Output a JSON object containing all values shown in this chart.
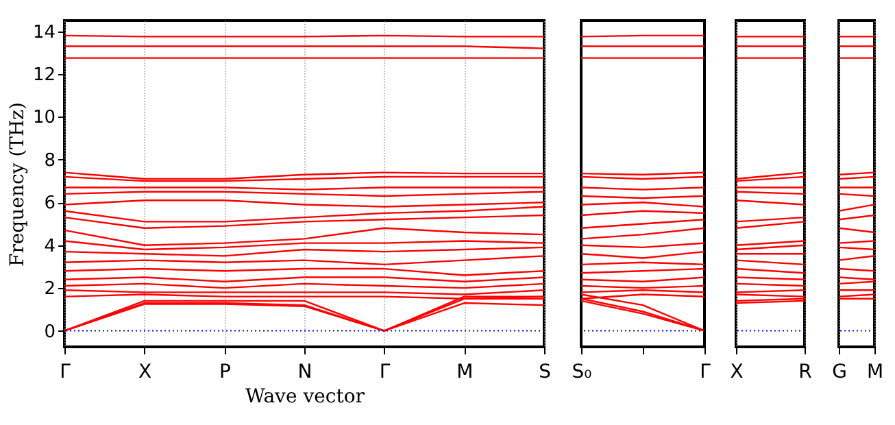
{
  "chart_data": [
    {
      "type": "line",
      "xlabel": "Wave vector",
      "ylabel": "Frequency (THz)",
      "grid": "x",
      "line_style": "solid",
      "marker": "none",
      "categories": [
        "Γ",
        "X",
        "P",
        "N",
        "Γ",
        "M",
        "S"
      ],
      "ylim": [
        -0.75,
        14.5
      ],
      "yticks": [
        0,
        2,
        4,
        6,
        8,
        10,
        12,
        14
      ],
      "ref_lines": [
        {
          "axis": "y",
          "value": 0,
          "color": "#0000ff",
          "line_style": "dotted"
        }
      ],
      "series": [
        {
          "color": "#ff0000",
          "values": [
            13.8,
            13.75,
            13.75,
            13.75,
            13.8,
            13.75,
            13.75
          ]
        },
        {
          "color": "#ff0000",
          "values": [
            13.3,
            13.3,
            13.3,
            13.3,
            13.3,
            13.3,
            13.2
          ]
        },
        {
          "color": "#ff0000",
          "values": [
            12.75,
            12.75,
            12.75,
            12.75,
            12.75,
            12.75,
            12.75
          ]
        },
        {
          "color": "#ff0000",
          "values": [
            7.4,
            7.1,
            7.1,
            7.3,
            7.4,
            7.35,
            7.35
          ]
        },
        {
          "color": "#ff0000",
          "values": [
            7.2,
            7.0,
            7.0,
            7.1,
            7.2,
            7.2,
            7.2
          ]
        },
        {
          "color": "#ff0000",
          "values": [
            6.7,
            6.7,
            6.7,
            6.6,
            6.7,
            6.7,
            6.7
          ]
        },
        {
          "color": "#ff0000",
          "values": [
            6.4,
            6.5,
            6.5,
            6.4,
            6.3,
            6.4,
            6.5
          ]
        },
        {
          "color": "#ff0000",
          "values": [
            5.9,
            6.1,
            6.1,
            5.9,
            5.8,
            5.9,
            6.0
          ]
        },
        {
          "color": "#ff0000",
          "values": [
            5.6,
            5.1,
            5.1,
            5.3,
            5.5,
            5.6,
            5.8
          ]
        },
        {
          "color": "#ff0000",
          "values": [
            5.3,
            4.8,
            4.9,
            5.1,
            5.2,
            5.3,
            5.4
          ]
        },
        {
          "color": "#ff0000",
          "values": [
            4.7,
            4.0,
            4.1,
            4.3,
            4.8,
            4.6,
            4.5
          ]
        },
        {
          "color": "#ff0000",
          "values": [
            4.2,
            3.8,
            3.9,
            4.1,
            4.1,
            4.2,
            4.1
          ]
        },
        {
          "color": "#ff0000",
          "values": [
            3.7,
            3.6,
            3.5,
            3.8,
            3.7,
            3.8,
            3.9
          ]
        },
        {
          "color": "#ff0000",
          "values": [
            3.2,
            3.3,
            3.2,
            3.3,
            3.1,
            3.3,
            3.5
          ]
        },
        {
          "color": "#ff0000",
          "values": [
            2.8,
            2.9,
            2.8,
            2.9,
            2.9,
            2.6,
            2.8
          ]
        },
        {
          "color": "#ff0000",
          "values": [
            2.4,
            2.5,
            2.3,
            2.5,
            2.5,
            2.3,
            2.5
          ]
        },
        {
          "color": "#ff0000",
          "values": [
            2.1,
            2.2,
            2.0,
            2.2,
            2.1,
            2.0,
            2.2
          ]
        },
        {
          "color": "#ff0000",
          "values": [
            1.9,
            1.8,
            1.8,
            1.8,
            1.8,
            1.7,
            1.9
          ]
        },
        {
          "color": "#ff0000",
          "values": [
            1.6,
            1.7,
            1.6,
            1.6,
            1.6,
            1.5,
            1.6
          ]
        },
        {
          "color": "#ff0000",
          "values": [
            0,
            1.4,
            1.4,
            1.4,
            0,
            1.6,
            1.6
          ]
        },
        {
          "color": "#ff0000",
          "values": [
            0,
            1.3,
            1.3,
            1.2,
            0,
            1.5,
            1.5
          ]
        },
        {
          "color": "#ff0000",
          "values": [
            0,
            1.25,
            1.25,
            1.15,
            0,
            1.3,
            1.2
          ]
        }
      ]
    },
    {
      "type": "line",
      "tick_labels": "x",
      "line_style": "solid",
      "marker": "none",
      "categories": [
        "S₀",
        null,
        "Γ"
      ],
      "ylim": [
        -0.75,
        14.5
      ],
      "ref_lines": [
        {
          "axis": "y",
          "value": 0,
          "color": "#0000ff",
          "line_style": "dotted"
        }
      ],
      "series": [
        {
          "color": "#ff0000",
          "values": [
            13.75,
            13.8,
            13.8
          ]
        },
        {
          "color": "#ff0000",
          "values": [
            13.3,
            13.3,
            13.3
          ]
        },
        {
          "color": "#ff0000",
          "values": [
            12.75,
            12.75,
            12.75
          ]
        },
        {
          "color": "#ff0000",
          "values": [
            7.35,
            7.3,
            7.4
          ]
        },
        {
          "color": "#ff0000",
          "values": [
            7.2,
            7.1,
            7.2
          ]
        },
        {
          "color": "#ff0000",
          "values": [
            6.7,
            6.6,
            6.7
          ]
        },
        {
          "color": "#ff0000",
          "values": [
            6.3,
            6.2,
            6.3
          ]
        },
        {
          "color": "#ff0000",
          "values": [
            5.9,
            6.0,
            5.8
          ]
        },
        {
          "color": "#ff0000",
          "values": [
            5.4,
            5.6,
            5.5
          ]
        },
        {
          "color": "#ff0000",
          "values": [
            4.8,
            5.0,
            5.2
          ]
        },
        {
          "color": "#ff0000",
          "values": [
            4.3,
            4.5,
            4.8
          ]
        },
        {
          "color": "#ff0000",
          "values": [
            4.0,
            3.9,
            4.1
          ]
        },
        {
          "color": "#ff0000",
          "values": [
            3.6,
            3.4,
            3.7
          ]
        },
        {
          "color": "#ff0000",
          "values": [
            3.1,
            3.2,
            3.1
          ]
        },
        {
          "color": "#ff0000",
          "values": [
            2.7,
            2.8,
            2.9
          ]
        },
        {
          "color": "#ff0000",
          "values": [
            2.4,
            2.3,
            2.5
          ]
        },
        {
          "color": "#ff0000",
          "values": [
            2.1,
            2.0,
            2.1
          ]
        },
        {
          "color": "#ff0000",
          "values": [
            1.8,
            1.9,
            1.8
          ]
        },
        {
          "color": "#ff0000",
          "values": [
            1.5,
            1.7,
            1.6
          ]
        },
        {
          "color": "#ff0000",
          "values": [
            1.7,
            1.2,
            0
          ]
        },
        {
          "color": "#ff0000",
          "values": [
            1.5,
            0.9,
            0
          ]
        },
        {
          "color": "#ff0000",
          "values": [
            1.4,
            0.8,
            0
          ]
        }
      ]
    },
    {
      "type": "line",
      "tick_labels": "x",
      "grid": "x",
      "line_style": "solid",
      "marker": "none",
      "categories": [
        "X",
        "R"
      ],
      "ylim": [
        -0.75,
        14.5
      ],
      "ref_lines": [
        {
          "axis": "y",
          "value": 0,
          "color": "#0000ff",
          "line_style": "dotted"
        }
      ],
      "series": [
        {
          "color": "#ff0000",
          "values": [
            13.75,
            13.75
          ]
        },
        {
          "color": "#ff0000",
          "values": [
            13.3,
            13.3
          ]
        },
        {
          "color": "#ff0000",
          "values": [
            12.75,
            12.75
          ]
        },
        {
          "color": "#ff0000",
          "values": [
            7.1,
            7.4
          ]
        },
        {
          "color": "#ff0000",
          "values": [
            7.0,
            7.2
          ]
        },
        {
          "color": "#ff0000",
          "values": [
            6.7,
            6.7
          ]
        },
        {
          "color": "#ff0000",
          "values": [
            6.5,
            6.4
          ]
        },
        {
          "color": "#ff0000",
          "values": [
            6.1,
            5.9
          ]
        },
        {
          "color": "#ff0000",
          "values": [
            5.1,
            5.3
          ]
        },
        {
          "color": "#ff0000",
          "values": [
            4.8,
            5.1
          ]
        },
        {
          "color": "#ff0000",
          "values": [
            4.0,
            4.2
          ]
        },
        {
          "color": "#ff0000",
          "values": [
            3.8,
            4.0
          ]
        },
        {
          "color": "#ff0000",
          "values": [
            3.6,
            3.6
          ]
        },
        {
          "color": "#ff0000",
          "values": [
            3.3,
            3.1
          ]
        },
        {
          "color": "#ff0000",
          "values": [
            2.9,
            2.7
          ]
        },
        {
          "color": "#ff0000",
          "values": [
            2.5,
            2.4
          ]
        },
        {
          "color": "#ff0000",
          "values": [
            2.2,
            2.1
          ]
        },
        {
          "color": "#ff0000",
          "values": [
            1.8,
            1.9
          ]
        },
        {
          "color": "#ff0000",
          "values": [
            1.7,
            1.6
          ]
        },
        {
          "color": "#ff0000",
          "values": [
            1.4,
            1.5
          ]
        },
        {
          "color": "#ff0000",
          "values": [
            1.3,
            1.4
          ]
        }
      ]
    },
    {
      "type": "line",
      "tick_labels": "x",
      "grid": "x",
      "line_style": "solid",
      "marker": "none",
      "categories": [
        "G",
        "M"
      ],
      "ylim": [
        -0.75,
        14.5
      ],
      "ref_lines": [
        {
          "axis": "y",
          "value": 0,
          "color": "#0000ff",
          "line_style": "dotted"
        }
      ],
      "series": [
        {
          "color": "#ff0000",
          "values": [
            13.75,
            13.75
          ]
        },
        {
          "color": "#ff0000",
          "values": [
            13.3,
            13.3
          ]
        },
        {
          "color": "#ff0000",
          "values": [
            12.75,
            12.75
          ]
        },
        {
          "color": "#ff0000",
          "values": [
            7.3,
            7.4
          ]
        },
        {
          "color": "#ff0000",
          "values": [
            7.1,
            7.2
          ]
        },
        {
          "color": "#ff0000",
          "values": [
            6.7,
            6.7
          ]
        },
        {
          "color": "#ff0000",
          "values": [
            6.4,
            6.3
          ]
        },
        {
          "color": "#ff0000",
          "values": [
            5.6,
            5.9
          ]
        },
        {
          "color": "#ff0000",
          "values": [
            5.2,
            5.4
          ]
        },
        {
          "color": "#ff0000",
          "values": [
            4.8,
            4.6
          ]
        },
        {
          "color": "#ff0000",
          "values": [
            4.1,
            4.2
          ]
        },
        {
          "color": "#ff0000",
          "values": [
            3.9,
            3.8
          ]
        },
        {
          "color": "#ff0000",
          "values": [
            3.3,
            3.5
          ]
        },
        {
          "color": "#ff0000",
          "values": [
            2.9,
            2.8
          ]
        },
        {
          "color": "#ff0000",
          "values": [
            2.5,
            2.4
          ]
        },
        {
          "color": "#ff0000",
          "values": [
            2.2,
            2.3
          ]
        },
        {
          "color": "#ff0000",
          "values": [
            1.9,
            1.9
          ]
        },
        {
          "color": "#ff0000",
          "values": [
            1.6,
            1.7
          ]
        },
        {
          "color": "#ff0000",
          "values": [
            1.5,
            1.5
          ]
        }
      ]
    }
  ]
}
